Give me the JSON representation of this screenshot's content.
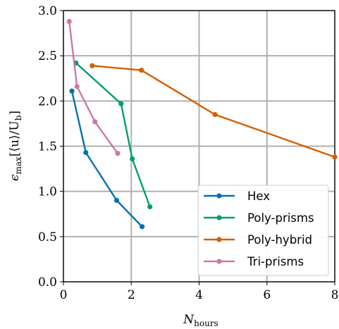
{
  "chart_data": {
    "type": "line",
    "title": "",
    "xlabel": {
      "main": "N",
      "sub": "hours"
    },
    "ylabel": {
      "prefix": "ϵ",
      "sub": "max",
      "body": "[⟨u⟩/U",
      "sub2": "b",
      "close": "]"
    },
    "xlim": [
      0,
      8
    ],
    "ylim": [
      0.0,
      3.0
    ],
    "xticks": [
      0,
      2,
      4,
      6,
      8
    ],
    "xtick_labels": [
      "0",
      "2",
      "4",
      "6",
      "8"
    ],
    "yticks": [
      0.0,
      0.5,
      1.0,
      1.5,
      2.0,
      2.5,
      3.0
    ],
    "ytick_labels": [
      "0.0",
      "0.5",
      "1.0",
      "1.5",
      "2.0",
      "2.5",
      "3.0"
    ],
    "grid": true,
    "legend_position": "lower-right",
    "series": [
      {
        "name": "Hex",
        "color": "#0072b2",
        "x": [
          0.25,
          0.66,
          1.57,
          2.32
        ],
        "y": [
          2.11,
          1.43,
          0.9,
          0.61
        ]
      },
      {
        "name": "Poly-prisms",
        "color": "#009e73",
        "x": [
          0.37,
          1.7,
          2.03,
          2.55
        ],
        "y": [
          2.42,
          1.97,
          1.36,
          0.83
        ]
      },
      {
        "name": "Poly-hybrid",
        "color": "#d55e00",
        "x": [
          0.85,
          2.3,
          4.47,
          8.0
        ],
        "y": [
          2.39,
          2.34,
          1.85,
          1.38
        ]
      },
      {
        "name": "Tri-prisms",
        "color": "#cc79a7",
        "x": [
          0.17,
          0.4,
          0.93,
          1.6
        ],
        "y": [
          2.88,
          2.16,
          1.77,
          1.42
        ]
      }
    ]
  }
}
